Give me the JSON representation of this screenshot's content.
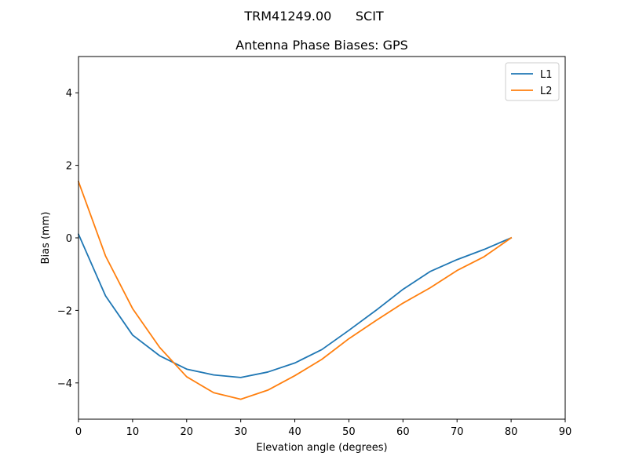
{
  "suptitle": "TRM41249.00      SCIT",
  "chart_data": {
    "type": "line",
    "title": "Antenna Phase Biases: GPS",
    "xlabel": "Elevation angle (degrees)",
    "ylabel": "Bias (mm)",
    "xlim": [
      0,
      90
    ],
    "ylim": [
      -5,
      5
    ],
    "xticks": [
      0,
      10,
      20,
      30,
      40,
      50,
      60,
      70,
      80,
      90
    ],
    "xtick_labels": [
      "0",
      "10",
      "20",
      "30",
      "40",
      "50",
      "60",
      "70",
      "80",
      "90"
    ],
    "yticks": [
      -4,
      -2,
      0,
      2,
      4
    ],
    "ytick_labels": [
      "−4",
      "−2",
      "0",
      "2",
      "4"
    ],
    "grid": false,
    "legend_position": "top-right",
    "x": [
      0,
      5,
      10,
      15,
      20,
      25,
      30,
      35,
      40,
      45,
      50,
      55,
      60,
      65,
      70,
      75,
      80
    ],
    "series": [
      {
        "name": "L1",
        "color": "#1f77b4",
        "values": [
          0.1,
          -1.6,
          -2.68,
          -3.25,
          -3.62,
          -3.78,
          -3.85,
          -3.7,
          -3.45,
          -3.08,
          -2.55,
          -2.0,
          -1.42,
          -0.93,
          -0.6,
          -0.32,
          0.0
        ]
      },
      {
        "name": "L2",
        "color": "#ff7f0e",
        "values": [
          1.55,
          -0.5,
          -1.95,
          -3.02,
          -3.83,
          -4.27,
          -4.45,
          -4.2,
          -3.8,
          -3.35,
          -2.78,
          -2.28,
          -1.8,
          -1.38,
          -0.9,
          -0.52,
          0.0
        ]
      }
    ]
  }
}
